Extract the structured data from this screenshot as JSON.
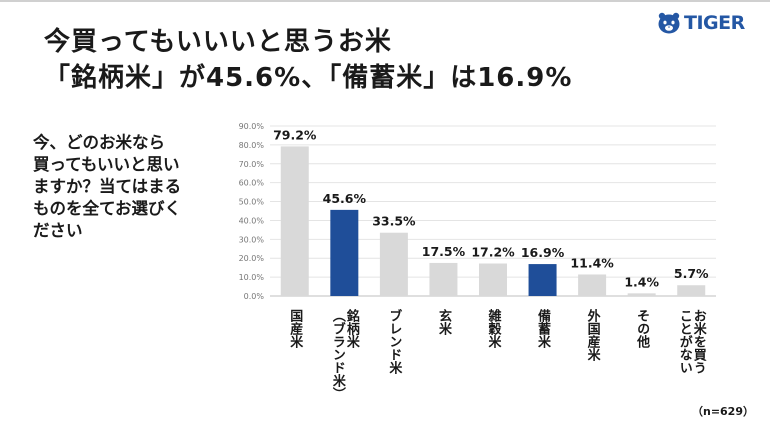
{
  "header": {
    "title_lines": [
      "今買ってもいいいと思うお米",
      "「銘柄米」が45.6%、「備蓄米」は16.9%"
    ],
    "logo_text": "TIGER",
    "logo_icon": "tiger-head-icon"
  },
  "question_lines": [
    "今、どのお米なら",
    "買ってもいいと思い",
    "ますか？当てはまる",
    "ものを全てお選びく",
    "ださい"
  ],
  "footnote": "（n=629）",
  "colors": {
    "highlight": "#1f4e99",
    "default": "#d9d9d9",
    "text": "#1a1a1a",
    "logo": "#2457a4"
  },
  "chart_data": {
    "type": "bar",
    "categories": [
      "国産米",
      "銘柄米（ブランド米）",
      "ブレンド米",
      "玄米",
      "雑穀米",
      "備蓄米",
      "外国産米",
      "その他",
      "お米を買うことがない"
    ],
    "category_label_lines": [
      [
        "国産米"
      ],
      [
        "銘柄米",
        "（ブランド米）"
      ],
      [
        "ブレンド米"
      ],
      [
        "玄米"
      ],
      [
        "雑穀米"
      ],
      [
        "備蓄米"
      ],
      [
        "外国産米"
      ],
      [
        "その他"
      ],
      [
        "お米を買う",
        "ことがない"
      ]
    ],
    "values": [
      79.2,
      45.6,
      33.5,
      17.5,
      17.2,
      16.9,
      11.4,
      1.4,
      5.7
    ],
    "value_labels": [
      "79.2%",
      "45.6%",
      "33.5%",
      "17.5%",
      "17.2%",
      "16.9%",
      "11.4%",
      "1.4%",
      "5.7%"
    ],
    "highlighted": [
      false,
      true,
      false,
      false,
      false,
      true,
      false,
      false,
      false
    ],
    "y_ticks": [
      "0.0%",
      "10.0%",
      "20.0%",
      "30.0%",
      "40.0%",
      "50.0%",
      "60.0%",
      "70.0%",
      "80.0%",
      "90.0%"
    ],
    "ylim": [
      0,
      90
    ],
    "grid": true,
    "title": "",
    "xlabel": "",
    "ylabel": ""
  }
}
